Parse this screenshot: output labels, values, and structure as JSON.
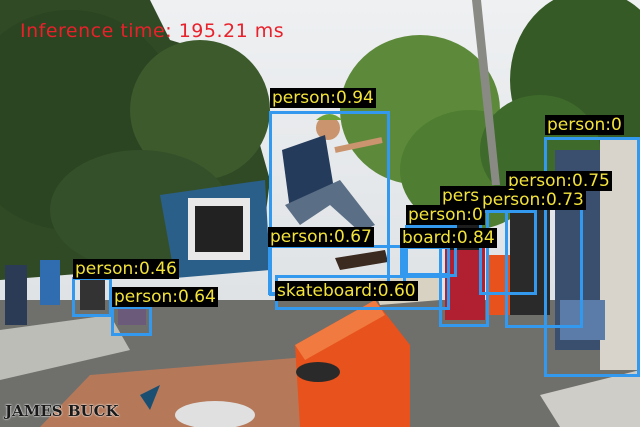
{
  "inference_text": "Inference time: 195.21 ms",
  "watermark": "JAMES BUCK",
  "colors": {
    "box": "#3399ee",
    "label_bg": "#000000",
    "label_text": "#f2e23a",
    "inference_text": "#e8212b"
  },
  "detections": [
    {
      "label": "person:0.94"
    },
    {
      "label": "person:0"
    },
    {
      "label": "person:0.75"
    },
    {
      "label": "person:0.73"
    },
    {
      "label": "person:0"
    },
    {
      "label": "person:0"
    },
    {
      "label": "board:0.84"
    },
    {
      "label": "person:0.67"
    },
    {
      "label": "skateboard:0.60"
    },
    {
      "label": "person:0.46"
    },
    {
      "label": "person:0.64"
    }
  ]
}
